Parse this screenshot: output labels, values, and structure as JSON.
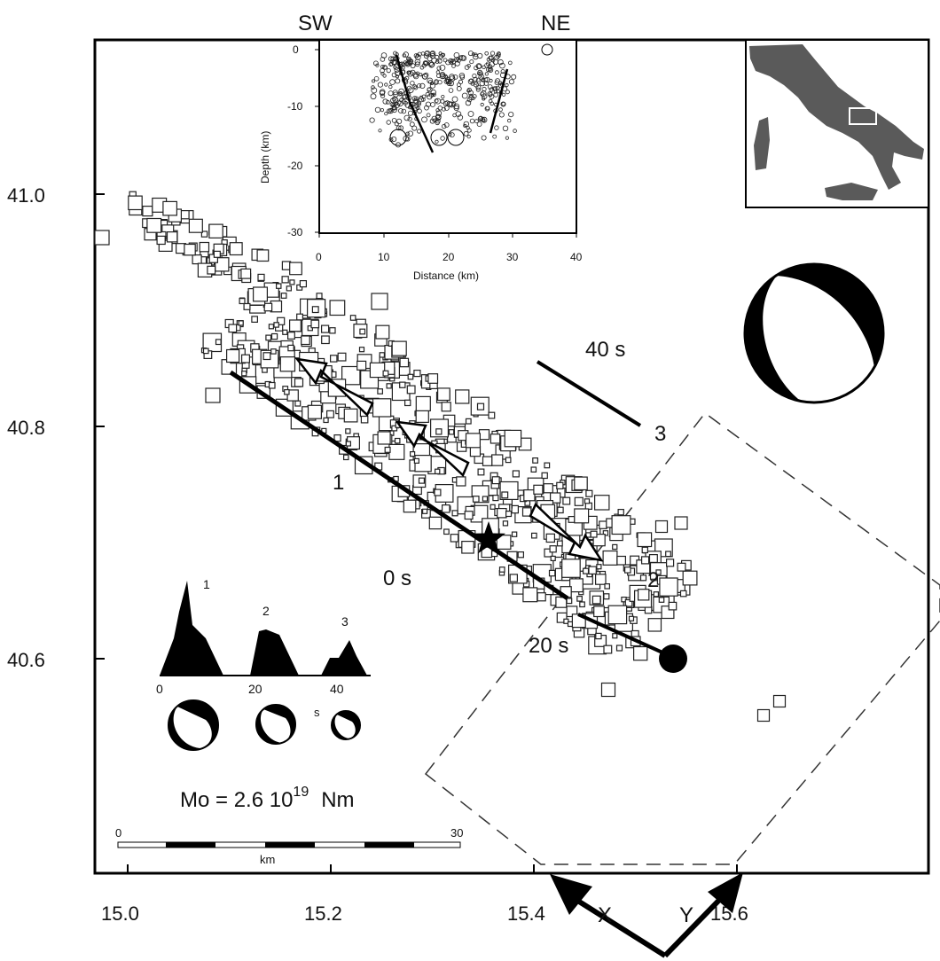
{
  "compass": {
    "left": "SW",
    "right": "NE"
  },
  "map_axes": {
    "lat_ticks": [
      "41.0",
      "40.8",
      "40.6"
    ],
    "lon_ticks": [
      "15.0",
      "15.2",
      "15.4",
      "15.6"
    ]
  },
  "inset_section": {
    "xlabel": "Distance (km)",
    "ylabel": "Depth (km)",
    "x_ticks": [
      "0",
      "10",
      "20",
      "30",
      "40"
    ],
    "y_ticks": [
      "0",
      "-10",
      "-20",
      "-30"
    ]
  },
  "annotations": {
    "fault1": "1",
    "fault2": "2",
    "fault3": "3",
    "t0": "0 s",
    "t20": "20 s",
    "t40": "40 s"
  },
  "stf": {
    "peak_labels": [
      "1",
      "2",
      "3"
    ],
    "x_ticks": [
      "0",
      "20",
      "40"
    ],
    "unit": "s"
  },
  "moment": {
    "prefix": "Mo = 2.6 10",
    "exponent": "19",
    "unit": "Nm"
  },
  "scalebar": {
    "start": "0",
    "end": "30",
    "unit": "km"
  },
  "axes_arrows": {
    "x": "X",
    "y": "Y"
  },
  "colors": {
    "ink": "#111111",
    "frame": "#000000",
    "map_land": "#5a5a5a",
    "background": "#ffffff"
  }
}
